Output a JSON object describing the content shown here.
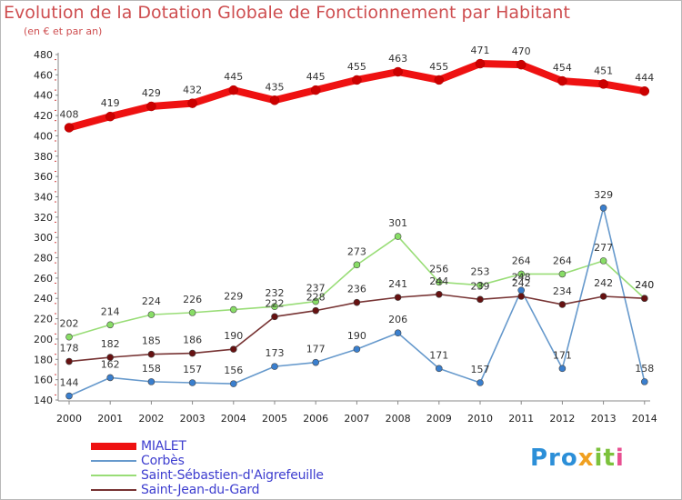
{
  "title": "Evolution de la Dotation Globale de Fonctionnement par Habitant",
  "subtitle": "(en € et par an)",
  "logo": {
    "part1": "Pro",
    "part2": "x",
    "part3": "it",
    "part4": "i"
  },
  "chart_data": {
    "type": "line",
    "title": "Evolution de la Dotation Globale de Fonctionnement par Habitant",
    "subtitle": "(en € et par an)",
    "xlabel": "",
    "ylabel": "",
    "ylim": [
      140,
      480
    ],
    "yticks": [
      140,
      160,
      180,
      200,
      220,
      240,
      260,
      280,
      300,
      320,
      340,
      360,
      380,
      400,
      420,
      440,
      460,
      480
    ],
    "grid": false,
    "legend_position": "bottom-left",
    "categories": [
      "2000",
      "2001",
      "2002",
      "2003",
      "2004",
      "2005",
      "2006",
      "2007",
      "2008",
      "2009",
      "2010",
      "2011",
      "2012",
      "2013",
      "2014"
    ],
    "series": [
      {
        "name": "MIALET",
        "color": "#ee1111",
        "marker": "#cc0000",
        "values": [
          408,
          419,
          429,
          432,
          445,
          435,
          445,
          455,
          463,
          455,
          471,
          470,
          454,
          451,
          444
        ]
      },
      {
        "name": "Corbès",
        "color": "#6699cc",
        "marker": "#3a7fce",
        "values": [
          144,
          162,
          158,
          157,
          156,
          173,
          177,
          190,
          206,
          171,
          157,
          248,
          171,
          329,
          158
        ]
      },
      {
        "name": "Saint-Sébastien-d'Aigrefeuille",
        "color": "#99dd77",
        "marker": "#88dd66",
        "values": [
          202,
          214,
          224,
          226,
          229,
          232,
          237,
          273,
          301,
          256,
          253,
          264,
          264,
          277,
          240
        ]
      },
      {
        "name": "Saint-Jean-du-Gard",
        "color": "#773333",
        "marker": "#661111",
        "values": [
          178,
          182,
          185,
          186,
          190,
          222,
          228,
          236,
          241,
          244,
          239,
          242,
          234,
          242,
          240
        ]
      }
    ]
  }
}
